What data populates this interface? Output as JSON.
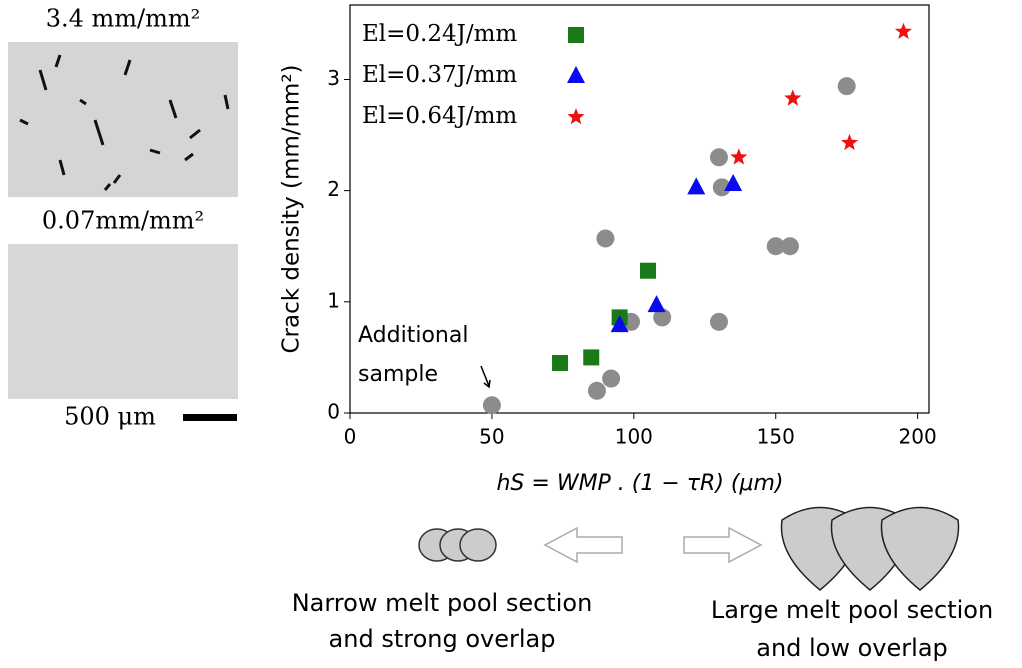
{
  "panels": [
    {
      "label": "3.4 mm/mm²"
    },
    {
      "label": "0.07mm/mm²"
    }
  ],
  "scale_bar": "500 μm",
  "bottom": {
    "left_text": [
      "Narrow melt pool section",
      "and strong overlap"
    ],
    "right_text": [
      "Large melt pool section",
      "and low overlap"
    ]
  },
  "chart_data": {
    "type": "scatter",
    "xlabel": "hS = WMP . (1 − τR) (μm)",
    "ylabel": "Crack density (mm/mm²)",
    "annotation": [
      "Additional",
      "sample"
    ],
    "xlim": [
      0,
      204
    ],
    "ylim": [
      0,
      3.67
    ],
    "xticks": [
      0,
      50,
      100,
      150,
      200
    ],
    "yticks": [
      0,
      1,
      2,
      3
    ],
    "series": [
      {
        "color": "#8c8c8c",
        "marker": "circle",
        "x": [
          50,
          87,
          92,
          90,
          99,
          110,
          130,
          131,
          130,
          150,
          155,
          175
        ],
        "values": [
          0.07,
          0.2,
          0.31,
          1.57,
          0.82,
          0.86,
          2.3,
          2.03,
          0.82,
          1.5,
          1.5,
          2.94
        ]
      },
      {
        "name": "El=0.24J/mm",
        "color": "#1a7a1a",
        "marker": "square",
        "x": [
          74,
          85,
          95,
          105
        ],
        "values": [
          0.45,
          0.5,
          0.86,
          1.28
        ]
      },
      {
        "name": "El=0.37J/mm",
        "color": "#0a0aee",
        "marker": "triangle",
        "x": [
          95,
          108,
          122,
          135
        ],
        "values": [
          0.79,
          0.97,
          2.03,
          2.06
        ]
      },
      {
        "name": "El=0.64J/mm",
        "color": "#ee1111",
        "marker": "star",
        "x": [
          137,
          156,
          176,
          195
        ],
        "values": [
          2.3,
          2.83,
          2.43,
          3.43
        ]
      }
    ]
  }
}
